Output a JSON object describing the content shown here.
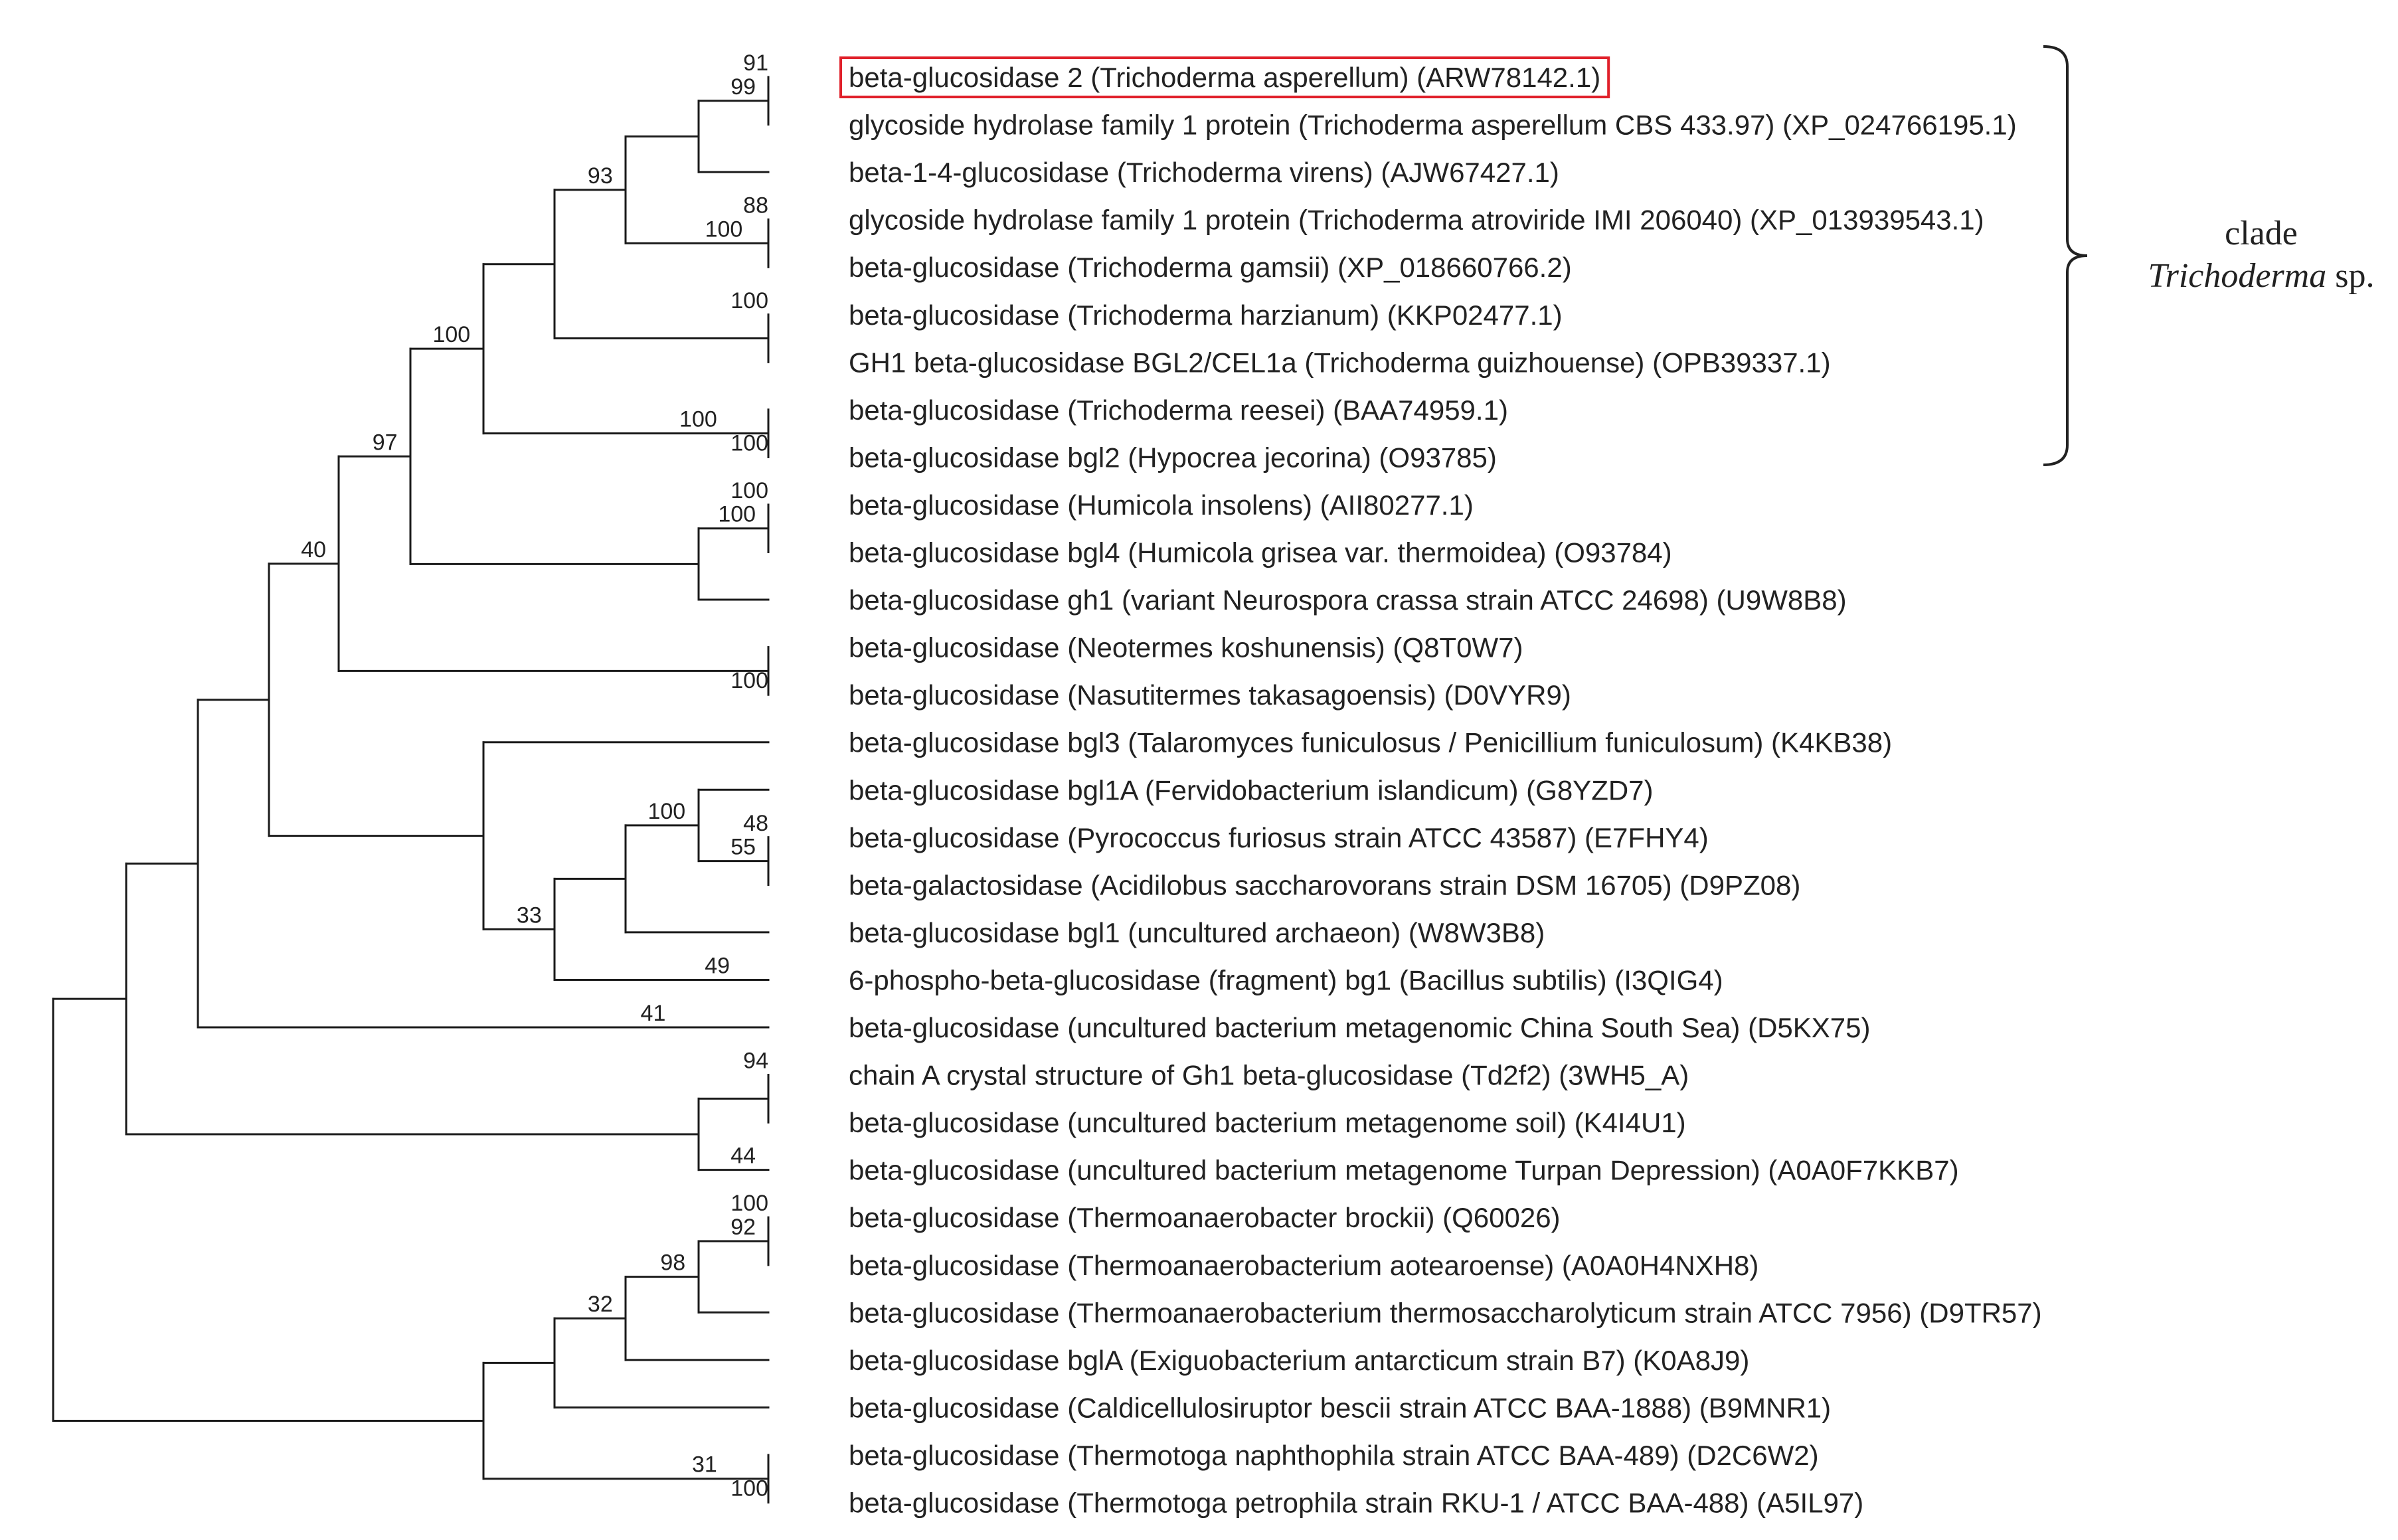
{
  "leaves": [
    "beta-glucosidase 2 (Trichoderma asperellum) (ARW78142.1)",
    "glycoside hydrolase family 1 protein (Trichoderma asperellum CBS 433.97) (XP_024766195.1)",
    "beta-1-4-glucosidase (Trichoderma virens) (AJW67427.1)",
    "glycoside hydrolase family 1 protein (Trichoderma atroviride IMI 206040) (XP_013939543.1)",
    "beta-glucosidase (Trichoderma gamsii) (XP_018660766.2)",
    "beta-glucosidase (Trichoderma harzianum) (KKP02477.1)",
    "GH1 beta-glucosidase BGL2/CEL1a (Trichoderma guizhouense) (OPB39337.1)",
    "beta-glucosidase (Trichoderma reesei) (BAA74959.1)",
    "beta-glucosidase bgl2 (Hypocrea jecorina) (O93785)",
    "beta-glucosidase (Humicola insolens) (AII80277.1)",
    "beta-glucosidase bgl4 (Humicola grisea var. thermoidea) (O93784)",
    "beta-glucosidase gh1 (variant Neurospora crassa strain ATCC 24698) (U9W8B8)",
    "beta-glucosidase (Neotermes koshunensis) (Q8T0W7)",
    "beta-glucosidase (Nasutitermes takasagoensis) (D0VYR9)",
    "beta-glucosidase bgl3 (Talaromyces funiculosus / Penicillium funiculosum) (K4KB38)",
    "beta-glucosidase bgl1A (Fervidobacterium islandicum) (G8YZD7)",
    "beta-glucosidase (Pyrococcus furiosus strain ATCC 43587) (E7FHY4)",
    "beta-galactosidase (Acidilobus saccharovorans strain DSM 16705) (D9PZ08)",
    "beta-glucosidase bgl1 (uncultured archaeon) (W8W3B8)",
    "6-phospho-beta-glucosidase (fragment) bg1 (Bacillus subtilis) (I3QIG4)",
    "beta-glucosidase (uncultured bacterium metagenomic China South Sea) (D5KX75)",
    "chain A crystal structure of Gh1 beta-glucosidase (Td2f2) (3WH5_A)",
    "beta-glucosidase (uncultured bacterium metagenome soil) (K4I4U1)",
    "beta-glucosidase (uncultured bacterium metagenome Turpan Depression) (A0A0F7KKB7)",
    "beta-glucosidase (Thermoanaerobacter brockii) (Q60026)",
    "beta-glucosidase (Thermoanaerobacterium aotearoense) (A0A0H4NXH8)",
    "beta-glucosidase (Thermoanaerobacterium thermosaccharolyticum strain ATCC 7956) (D9TR57)",
    "beta-glucosidase bglA (Exiguobacterium antarcticum strain B7) (K0A8J9)",
    "beta-glucosidase (Caldicellulosiruptor bescii strain ATCC BAA-1888) (B9MNR1)",
    "beta-glucosidase (Thermotoga naphthophila strain ATCC BAA-489) (D2C6W2)",
    "beta-glucosidase (Thermotoga petrophila strain RKU-1 / ATCC BAA-488) (A5IL97)"
  ],
  "bootstrap": [
    "91",
    "99",
    "100",
    "88",
    "93",
    "100",
    "100",
    "100",
    "100",
    "100",
    "97",
    "100",
    "40",
    "55",
    "48",
    "100",
    "49",
    "33",
    "41",
    "94",
    "44",
    "100",
    "92",
    "98",
    "32",
    "100",
    "31"
  ],
  "clade": {
    "line1": "clade",
    "line2": "Trichoderma",
    "line3": " sp."
  },
  "highlight_color": "#e0202a"
}
